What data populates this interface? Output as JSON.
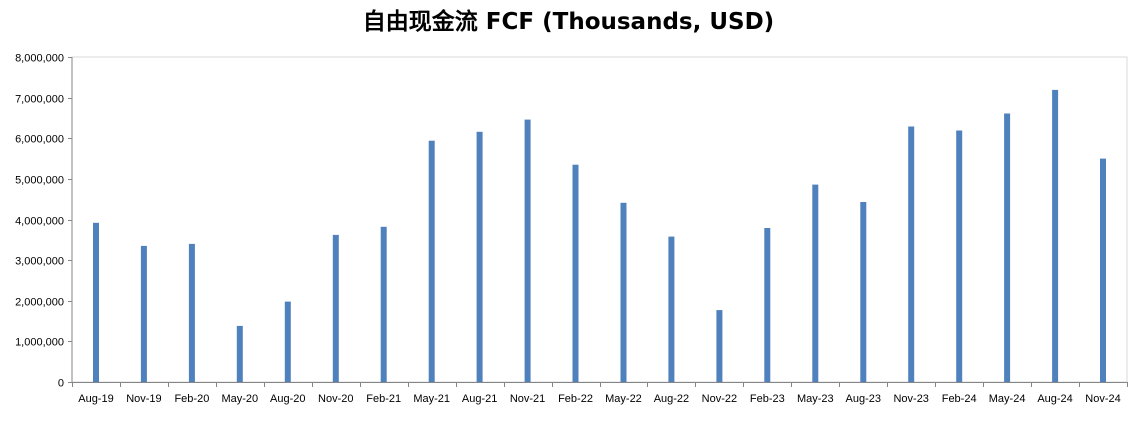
{
  "chart_data": {
    "type": "bar",
    "title": "自由现金流 FCF (Thousands, USD)",
    "xlabel": "",
    "ylabel": "",
    "categories": [
      "Aug-19",
      "Nov-19",
      "Feb-20",
      "May-20",
      "Aug-20",
      "Nov-20",
      "Feb-21",
      "May-21",
      "Aug-21",
      "Nov-21",
      "Feb-22",
      "May-22",
      "Aug-22",
      "Nov-22",
      "Feb-23",
      "May-23",
      "Aug-23",
      "Nov-23",
      "Feb-24",
      "May-24",
      "Aug-24",
      "Nov-24"
    ],
    "values": [
      3920000,
      3350000,
      3400000,
      1380000,
      1980000,
      3620000,
      3820000,
      5940000,
      6160000,
      6460000,
      5350000,
      4410000,
      3580000,
      1770000,
      3790000,
      4860000,
      4430000,
      6290000,
      6190000,
      6610000,
      7190000,
      5500000
    ],
    "ylim": [
      0,
      8000000
    ],
    "yticks": [
      0,
      1000000,
      2000000,
      3000000,
      4000000,
      5000000,
      6000000,
      7000000,
      8000000
    ],
    "ytick_labels": [
      "0",
      "1,000,000",
      "2,000,000",
      "3,000,000",
      "4,000,000",
      "5,000,000",
      "6,000,000",
      "7,000,000",
      "8,000,000"
    ],
    "grid": false,
    "legend": "none",
    "bar_color": "#4F81BD"
  }
}
